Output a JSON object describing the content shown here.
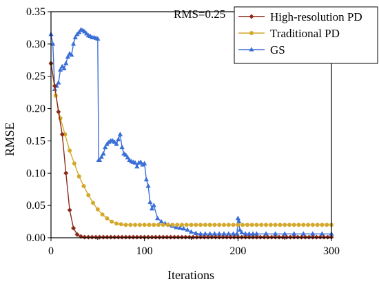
{
  "chart_data": {
    "type": "line",
    "xlabel": "Iterations",
    "ylabel": "RMSE",
    "xlim": [
      0,
      300
    ],
    "ylim": [
      0,
      0.35
    ],
    "xticks": [
      0,
      100,
      200,
      300
    ],
    "yticks": [
      0.0,
      0.05,
      0.1,
      0.15,
      0.2,
      0.25,
      0.3,
      0.35
    ],
    "xtick_labels": [
      "0",
      "100",
      "200",
      "300"
    ],
    "ytick_labels": [
      "0.00",
      "0.05",
      "0.10",
      "0.15",
      "0.20",
      "0.25",
      "0.30",
      "0.35"
    ],
    "annotation": "RMS=0.25",
    "grid": false,
    "legend_position": "top-right",
    "series": [
      {
        "name": "High-resolution PD",
        "color": "#8b2a1a",
        "marker": "diamond",
        "x": [
          0,
          4,
          8,
          12,
          16,
          20,
          24,
          28,
          32,
          36,
          40,
          44,
          48,
          52,
          56,
          60,
          64,
          68,
          72,
          76,
          80,
          84,
          88,
          92,
          96,
          100,
          104,
          108,
          112,
          116,
          120,
          124,
          128,
          132,
          136,
          140,
          144,
          148,
          152,
          156,
          160,
          164,
          168,
          172,
          176,
          180,
          184,
          188,
          192,
          196,
          200,
          204,
          208,
          212,
          216,
          220,
          224,
          228,
          232,
          236,
          240,
          244,
          248,
          252,
          256,
          260,
          264,
          268,
          272,
          276,
          280,
          284,
          288,
          292,
          296,
          300
        ],
        "y": [
          0.27,
          0.235,
          0.195,
          0.16,
          0.1,
          0.043,
          0.015,
          0.005,
          0.002,
          0.001,
          0.001,
          0.001,
          0.001,
          0.001,
          0.001,
          0.001,
          0.001,
          0.001,
          0.001,
          0.001,
          0.001,
          0.001,
          0.001,
          0.001,
          0.001,
          0.001,
          0.001,
          0.001,
          0.001,
          0.001,
          0.001,
          0.001,
          0.001,
          0.001,
          0.001,
          0.001,
          0.001,
          0.001,
          0.001,
          0.001,
          0.001,
          0.001,
          0.001,
          0.001,
          0.001,
          0.001,
          0.001,
          0.001,
          0.001,
          0.001,
          0.001,
          0.001,
          0.001,
          0.001,
          0.001,
          0.001,
          0.001,
          0.001,
          0.001,
          0.001,
          0.001,
          0.001,
          0.001,
          0.001,
          0.001,
          0.001,
          0.001,
          0.001,
          0.001,
          0.001,
          0.001,
          0.001,
          0.001,
          0.001,
          0.001,
          0.001
        ]
      },
      {
        "name": "Traditional PD",
        "color": "#d4a82a",
        "marker": "circle",
        "x": [
          0,
          5,
          10,
          15,
          20,
          25,
          30,
          35,
          40,
          45,
          50,
          55,
          60,
          65,
          70,
          75,
          80,
          85,
          90,
          95,
          100,
          105,
          110,
          115,
          120,
          125,
          130,
          135,
          140,
          145,
          150,
          155,
          160,
          165,
          170,
          175,
          180,
          185,
          190,
          195,
          200,
          205,
          210,
          215,
          220,
          225,
          230,
          235,
          240,
          245,
          250,
          255,
          260,
          265,
          270,
          275,
          280,
          285,
          290,
          295,
          300
        ],
        "y": [
          0.27,
          0.22,
          0.185,
          0.16,
          0.135,
          0.115,
          0.095,
          0.08,
          0.066,
          0.054,
          0.044,
          0.036,
          0.03,
          0.025,
          0.022,
          0.021,
          0.02,
          0.02,
          0.02,
          0.02,
          0.02,
          0.02,
          0.02,
          0.02,
          0.02,
          0.02,
          0.02,
          0.02,
          0.02,
          0.02,
          0.02,
          0.02,
          0.02,
          0.02,
          0.02,
          0.02,
          0.02,
          0.02,
          0.02,
          0.02,
          0.02,
          0.02,
          0.02,
          0.02,
          0.02,
          0.02,
          0.02,
          0.02,
          0.02,
          0.02,
          0.02,
          0.02,
          0.02,
          0.02,
          0.02,
          0.02,
          0.02,
          0.02,
          0.02,
          0.02,
          0.02
        ]
      },
      {
        "name": "GS",
        "color": "#3a6fd8",
        "marker": "triangle",
        "x": [
          0,
          2,
          4,
          6,
          8,
          10,
          12,
          14,
          16,
          18,
          20,
          22,
          24,
          26,
          28,
          30,
          32,
          34,
          36,
          38,
          40,
          42,
          44,
          46,
          48,
          50,
          51,
          52,
          54,
          56,
          58,
          60,
          62,
          64,
          66,
          68,
          70,
          72,
          74,
          76,
          78,
          80,
          82,
          84,
          86,
          88,
          90,
          92,
          94,
          96,
          98,
          100,
          102,
          104,
          106,
          108,
          110,
          114,
          118,
          122,
          126,
          130,
          134,
          138,
          142,
          146,
          150,
          155,
          160,
          165,
          170,
          175,
          180,
          185,
          190,
          195,
          199,
          200,
          201,
          202,
          204,
          208,
          212,
          216,
          220,
          230,
          240,
          250,
          260,
          270,
          280,
          290,
          300
        ],
        "y": [
          0.315,
          0.3,
          0.23,
          0.235,
          0.24,
          0.26,
          0.265,
          0.262,
          0.27,
          0.28,
          0.285,
          0.283,
          0.3,
          0.31,
          0.315,
          0.318,
          0.322,
          0.321,
          0.319,
          0.316,
          0.313,
          0.312,
          0.31,
          0.31,
          0.309,
          0.308,
          0.12,
          0.12,
          0.125,
          0.13,
          0.14,
          0.145,
          0.148,
          0.15,
          0.15,
          0.148,
          0.145,
          0.152,
          0.16,
          0.14,
          0.13,
          0.128,
          0.124,
          0.12,
          0.118,
          0.117,
          0.116,
          0.11,
          0.116,
          0.117,
          0.113,
          0.115,
          0.09,
          0.08,
          0.055,
          0.045,
          0.05,
          0.03,
          0.025,
          0.022,
          0.02,
          0.018,
          0.016,
          0.015,
          0.014,
          0.012,
          0.009,
          0.007,
          0.006,
          0.006,
          0.006,
          0.006,
          0.006,
          0.006,
          0.006,
          0.006,
          0.006,
          0.03,
          0.025,
          0.012,
          0.008,
          0.006,
          0.006,
          0.006,
          0.006,
          0.006,
          0.006,
          0.006,
          0.006,
          0.006,
          0.006,
          0.006,
          0.006
        ]
      }
    ]
  }
}
